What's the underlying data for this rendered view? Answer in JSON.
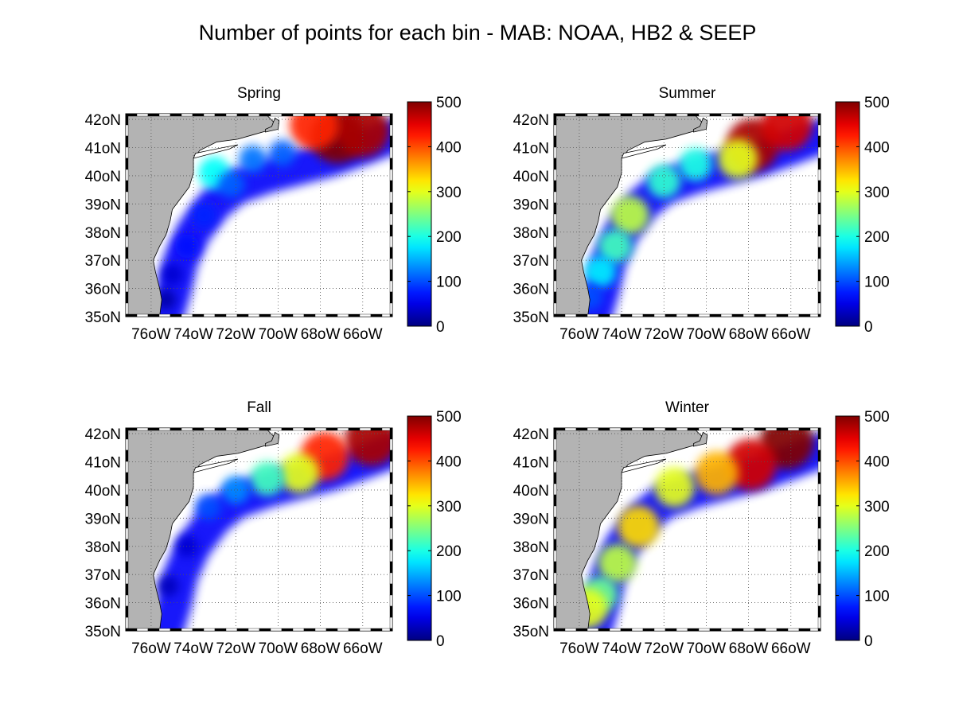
{
  "title": "Number of points for each bin - MAB: NOAA, HB2 & SEEP",
  "colors": {
    "land": "#b3b3b3",
    "coast": "#000000",
    "ocean_empty": "#ffffff",
    "grid": "#555555",
    "colormap": "jet"
  },
  "chart_data": [
    {
      "type": "heatmap",
      "title": "Spring",
      "xlabel": "",
      "ylabel": "",
      "x_range_deg_west": [
        77.2,
        64.6
      ],
      "y_range_deg_north": [
        35,
        42.2
      ],
      "x_ticks": [
        "76°W",
        "74°W",
        "72°W",
        "70°W",
        "68°W",
        "66°W"
      ],
      "y_ticks": [
        "35°N",
        "36°N",
        "37°N",
        "38°N",
        "39°N",
        "40°N",
        "41°N",
        "42°N"
      ],
      "colorbar": {
        "min": 0,
        "max": 500,
        "ticks": [
          0,
          100,
          200,
          300,
          400,
          500
        ]
      },
      "grid": true,
      "hotspots": [
        {
          "lon": -67.2,
          "lat": 41.4,
          "value": 500
        },
        {
          "lon": -66.0,
          "lat": 41.6,
          "value": 480
        },
        {
          "lon": -68.3,
          "lat": 41.8,
          "value": 420
        },
        {
          "lon": -69.8,
          "lat": 40.8,
          "value": 110
        },
        {
          "lon": -71.2,
          "lat": 40.6,
          "value": 120
        },
        {
          "lon": -73.0,
          "lat": 40.1,
          "value": 190
        },
        {
          "lon": -72.2,
          "lat": 39.7,
          "value": 110
        },
        {
          "lon": -73.5,
          "lat": 38.6,
          "value": 80
        },
        {
          "lon": -74.3,
          "lat": 37.5,
          "value": 70
        },
        {
          "lon": -75.0,
          "lat": 36.5,
          "value": 40
        },
        {
          "lon": -75.3,
          "lat": 35.6,
          "value": 20
        }
      ]
    },
    {
      "type": "heatmap",
      "title": "Summer",
      "xlabel": "",
      "ylabel": "",
      "x_range_deg_west": [
        77.2,
        64.6
      ],
      "y_range_deg_north": [
        35,
        42.2
      ],
      "x_ticks": [
        "76°W",
        "74°W",
        "72°W",
        "70°W",
        "68°W",
        "66°W"
      ],
      "y_ticks": [
        "35°N",
        "36°N",
        "37°N",
        "38°N",
        "39°N",
        "40°N",
        "41°N",
        "42°N"
      ],
      "colorbar": {
        "min": 0,
        "max": 500,
        "ticks": [
          0,
          100,
          200,
          300,
          400,
          500
        ]
      },
      "grid": true,
      "hotspots": [
        {
          "lon": -67.8,
          "lat": 41.1,
          "value": 480
        },
        {
          "lon": -66.2,
          "lat": 41.8,
          "value": 460
        },
        {
          "lon": -68.5,
          "lat": 40.6,
          "value": 300
        },
        {
          "lon": -70.5,
          "lat": 40.4,
          "value": 200
        },
        {
          "lon": -72.0,
          "lat": 39.8,
          "value": 210
        },
        {
          "lon": -73.6,
          "lat": 38.6,
          "value": 280
        },
        {
          "lon": -74.3,
          "lat": 37.5,
          "value": 220
        },
        {
          "lon": -75.0,
          "lat": 36.6,
          "value": 180
        },
        {
          "lon": -75.5,
          "lat": 35.7,
          "value": 100
        }
      ]
    },
    {
      "type": "heatmap",
      "title": "Fall",
      "xlabel": "",
      "ylabel": "",
      "x_range_deg_west": [
        77.2,
        64.6
      ],
      "y_range_deg_north": [
        35,
        42.2
      ],
      "x_ticks": [
        "76°W",
        "74°W",
        "72°W",
        "70°W",
        "68°W",
        "66°W"
      ],
      "y_ticks": [
        "35°N",
        "36°N",
        "37°N",
        "38°N",
        "39°N",
        "40°N",
        "41°N",
        "42°N"
      ],
      "colorbar": {
        "min": 0,
        "max": 500,
        "ticks": [
          0,
          100,
          200,
          300,
          400,
          500
        ]
      },
      "grid": true,
      "hotspots": [
        {
          "lon": -65.6,
          "lat": 41.8,
          "value": 480
        },
        {
          "lon": -67.8,
          "lat": 41.2,
          "value": 420
        },
        {
          "lon": -69.0,
          "lat": 40.6,
          "value": 300
        },
        {
          "lon": -70.5,
          "lat": 40.4,
          "value": 220
        },
        {
          "lon": -72.0,
          "lat": 40.0,
          "value": 130
        },
        {
          "lon": -73.3,
          "lat": 39.4,
          "value": 100
        },
        {
          "lon": -74.3,
          "lat": 38.0,
          "value": 40
        },
        {
          "lon": -75.2,
          "lat": 36.6,
          "value": 30
        }
      ]
    },
    {
      "type": "heatmap",
      "title": "Winter",
      "xlabel": "",
      "ylabel": "",
      "x_range_deg_west": [
        77.2,
        64.6
      ],
      "y_range_deg_north": [
        35,
        42.2
      ],
      "x_ticks": [
        "76°W",
        "74°W",
        "72°W",
        "70°W",
        "68°W",
        "66°W"
      ],
      "y_ticks": [
        "35°N",
        "36°N",
        "37°N",
        "38°N",
        "39°N",
        "40°N",
        "41°N",
        "42°N"
      ],
      "colorbar": {
        "min": 0,
        "max": 500,
        "ticks": [
          0,
          100,
          200,
          300,
          400,
          500
        ]
      },
      "grid": true,
      "hotspots": [
        {
          "lon": -66.2,
          "lat": 41.7,
          "value": 500
        },
        {
          "lon": -67.9,
          "lat": 40.9,
          "value": 460
        },
        {
          "lon": -69.5,
          "lat": 40.6,
          "value": 350
        },
        {
          "lon": -71.5,
          "lat": 40.1,
          "value": 300
        },
        {
          "lon": -73.2,
          "lat": 38.7,
          "value": 330
        },
        {
          "lon": -74.2,
          "lat": 37.4,
          "value": 280
        },
        {
          "lon": -75.0,
          "lat": 36.3,
          "value": 240
        },
        {
          "lon": -75.6,
          "lat": 35.8,
          "value": 300
        }
      ]
    }
  ]
}
